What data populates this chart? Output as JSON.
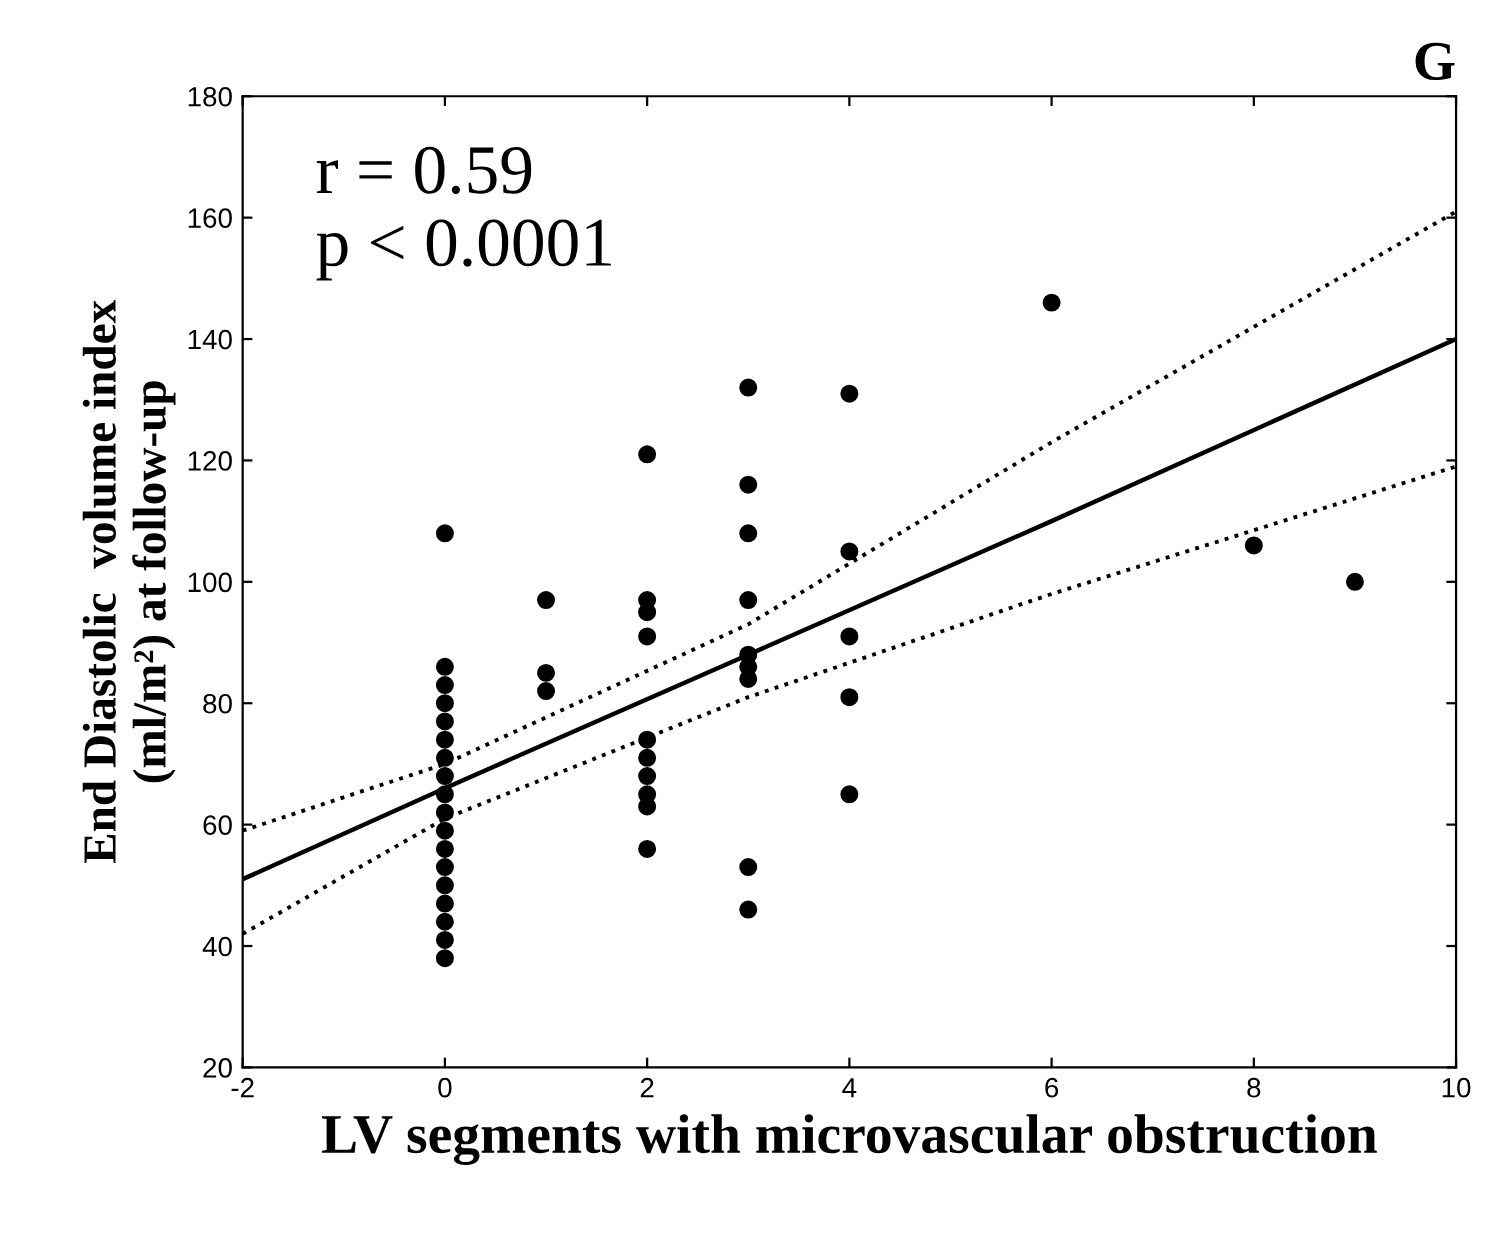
{
  "chart_data": {
    "type": "scatter",
    "xlabel": "LV segments with microvascular obstruction",
    "ylabel": "End Diastolic  volume index\n(ml/m²) at follow-up",
    "annotations": [
      "r = 0.59\np < 0.0001",
      "G"
    ],
    "xlim": [
      -2,
      10
    ],
    "xticks": [
      -2,
      0,
      2,
      4,
      6,
      8,
      10
    ],
    "ylim": [
      20,
      180
    ],
    "yticks": [
      20,
      40,
      60,
      80,
      100,
      120,
      140,
      160,
      180
    ],
    "grid": false,
    "legend": false,
    "marker": "circle",
    "series": [
      {
        "type": "scatter",
        "color": "#000000",
        "x": [
          0,
          0,
          0,
          0,
          0,
          0,
          0,
          0,
          0,
          0,
          0,
          0,
          0,
          0,
          0,
          0,
          0,
          0,
          1,
          1,
          1,
          2,
          2,
          2,
          2,
          2,
          2,
          2,
          2,
          2,
          2,
          3,
          3,
          3,
          3,
          3,
          3,
          3,
          3,
          3,
          4,
          4,
          4,
          4,
          4,
          6,
          8,
          9
        ],
        "values": [
          108,
          38,
          41,
          44,
          47,
          50,
          53,
          56,
          59,
          62,
          65,
          68,
          71,
          74,
          77,
          80,
          83,
          86,
          97,
          85,
          82,
          121,
          97,
          95,
          91,
          74,
          71,
          68,
          65,
          63,
          56,
          132,
          116,
          108,
          97,
          88,
          86,
          84,
          53,
          46,
          131,
          105,
          91,
          81,
          65,
          146,
          106,
          100
        ]
      },
      {
        "type": "line",
        "color": "#000000",
        "line_style": "solid",
        "marker": "none",
        "x": [
          -2,
          0,
          3,
          6,
          10
        ],
        "values": [
          51,
          66,
          88,
          110,
          140
        ]
      },
      {
        "type": "line",
        "color": "#000000",
        "line_style": "dotted",
        "marker": "none",
        "x": [
          -2,
          0,
          3,
          6,
          10
        ],
        "values": [
          42,
          61,
          81,
          98,
          119
        ]
      },
      {
        "type": "line",
        "color": "#000000",
        "line_style": "dotted",
        "marker": "none",
        "x": [
          -2,
          0,
          3,
          6,
          10
        ],
        "values": [
          59,
          70,
          93,
          123,
          161
        ]
      }
    ]
  }
}
